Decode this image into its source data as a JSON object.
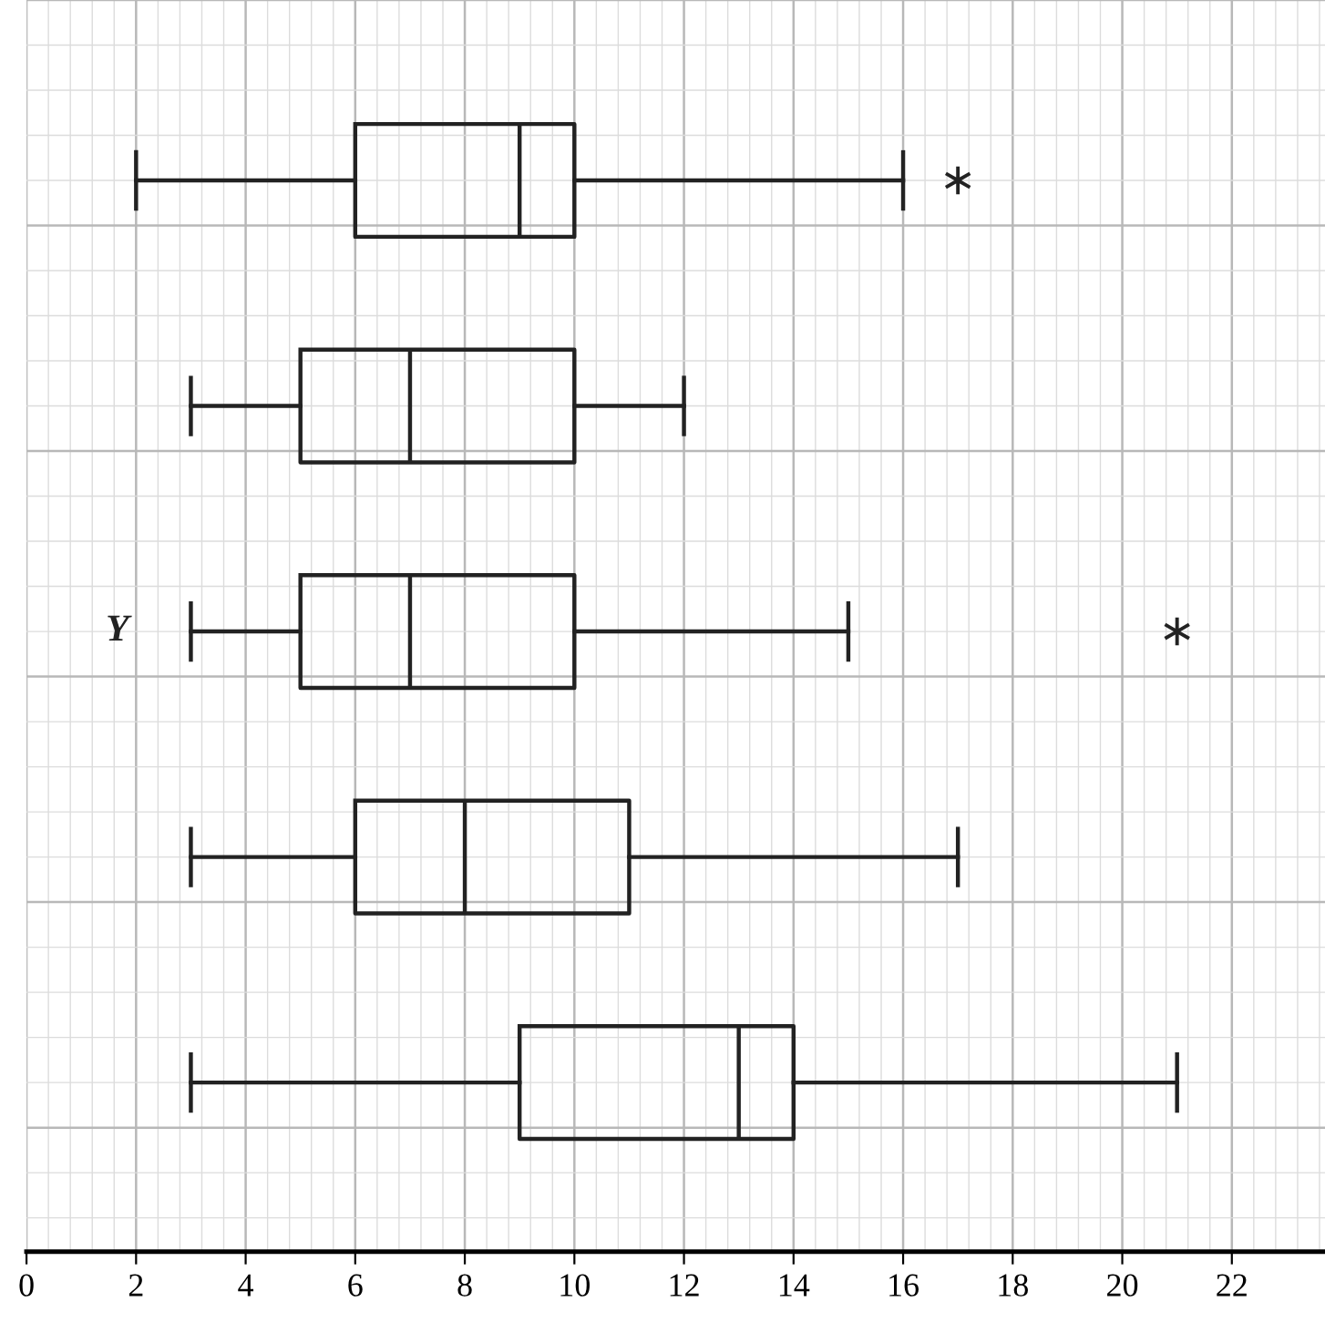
{
  "chart_data": {
    "type": "box",
    "orientation": "horizontal",
    "categories": [
      null,
      null,
      "Y",
      null,
      null
    ],
    "boxes": [
      {
        "low": 2,
        "q1": 6,
        "median": 9,
        "q3": 10,
        "high": 16,
        "outliers": [
          17
        ]
      },
      {
        "low": 3,
        "q1": 5,
        "median": 7,
        "q3": 10,
        "high": 12
      },
      {
        "low": 3,
        "q1": 5,
        "median": 7,
        "q3": 10,
        "high": 15,
        "outliers": [
          21
        ]
      },
      {
        "low": 3,
        "q1": 6,
        "median": 8,
        "q3": 11,
        "high": 17
      },
      {
        "low": 3,
        "q1": 9,
        "median": 13,
        "q3": 14,
        "high": 21
      }
    ],
    "color": "#222222",
    "xlim": [
      0,
      23.7
    ],
    "xticks": [
      0,
      2,
      4,
      6,
      8,
      10,
      12,
      14,
      16,
      18,
      20,
      22
    ],
    "grid": true,
    "marker": "cross"
  }
}
